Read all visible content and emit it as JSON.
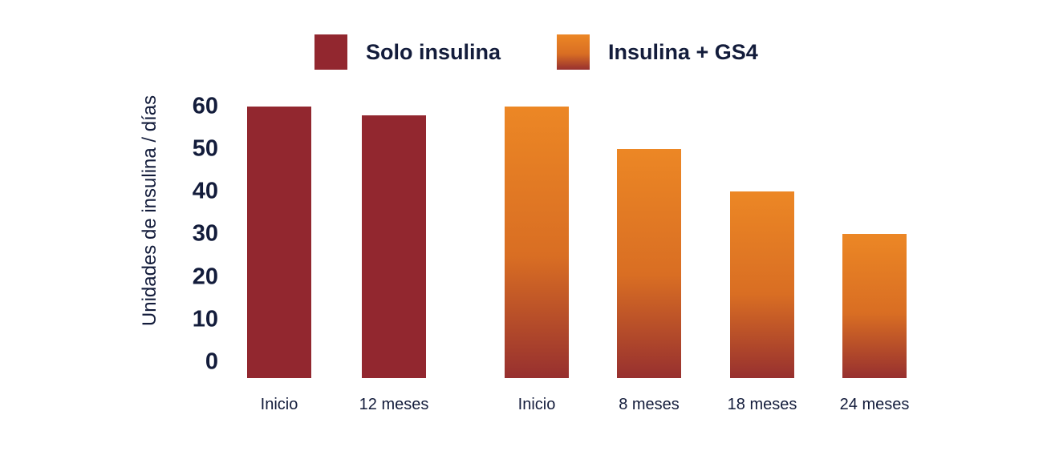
{
  "colors": {
    "series_red": "#92272F",
    "series_orange_top": "#EC8725",
    "series_orange_bottom": "#97302F",
    "text_navy": "#131C3B",
    "background": "#FFFFFF"
  },
  "chart_data": {
    "type": "bar",
    "title": "",
    "xlabel": "",
    "ylabel": "Unidades de insulina / días",
    "yticks": [
      60,
      50,
      40,
      30,
      20,
      10,
      0
    ],
    "ylim": [
      0,
      60
    ],
    "grid": false,
    "legend_position": "top",
    "categories": [
      "Inicio",
      "12 meses",
      "Inicio",
      "8 meses",
      "18 meses",
      "24 meses"
    ],
    "series": [
      {
        "name": "Solo insulina",
        "color": "#92272F",
        "categories": [
          "Inicio",
          "12 meses"
        ],
        "values": [
          60,
          58
        ]
      },
      {
        "name": "Insulina + GS4",
        "color_top": "#EC8725",
        "color_bottom": "#97302F",
        "categories": [
          "Inicio",
          "8 meses",
          "18 meses",
          "24 meses"
        ],
        "values": [
          60,
          50,
          40,
          30
        ]
      }
    ]
  }
}
